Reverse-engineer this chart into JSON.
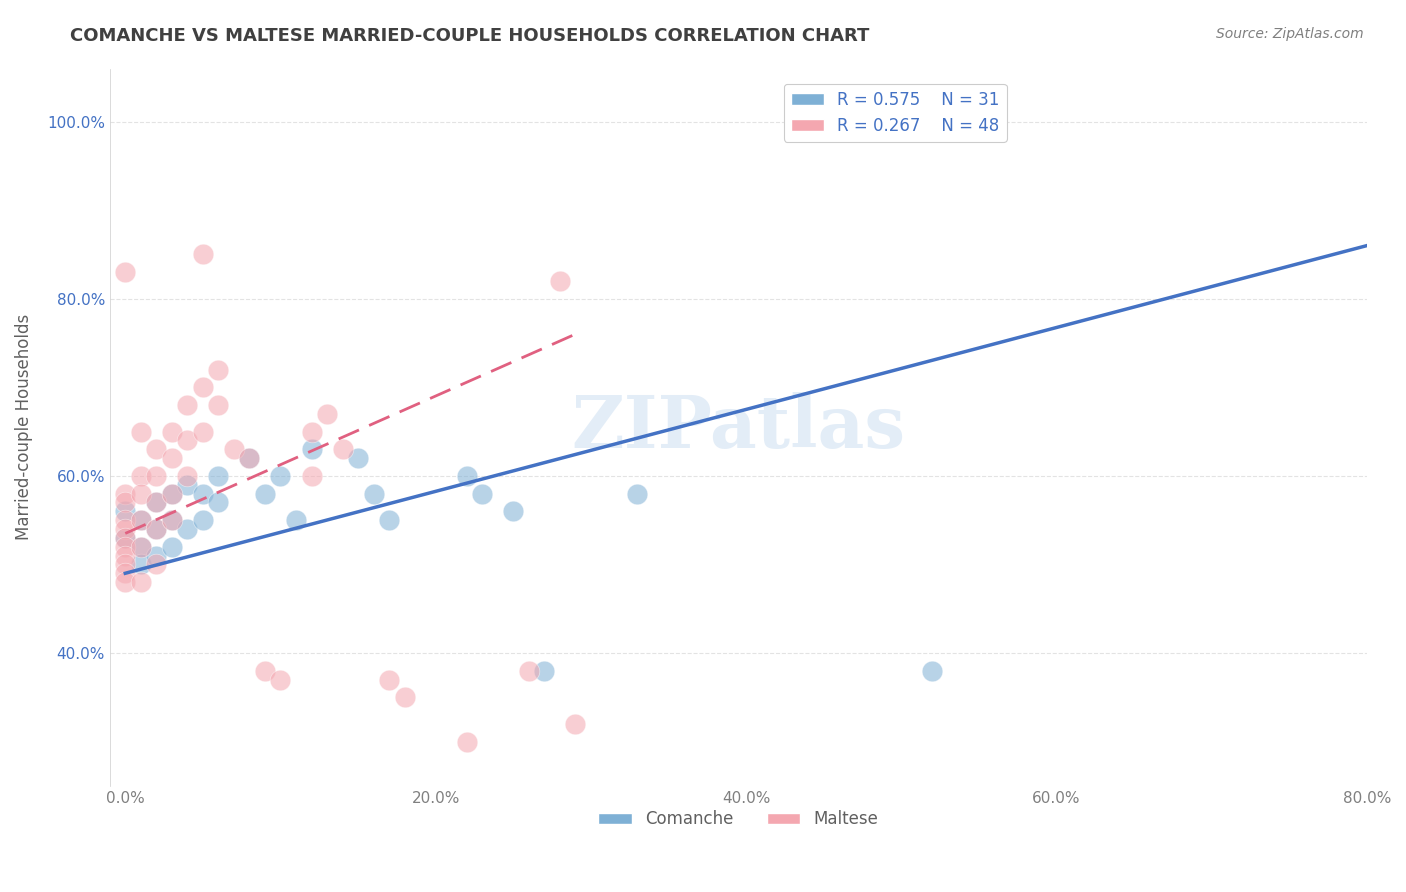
{
  "title": "COMANCHE VS MALTESE MARRIED-COUPLE HOUSEHOLDS CORRELATION CHART",
  "source": "Source: ZipAtlas.com",
  "ylabel": "Married-couple Households",
  "xlabel": "",
  "watermark": "ZIPatlas",
  "xlim": [
    0.0,
    0.8
  ],
  "ylim": [
    0.25,
    1.05
  ],
  "xticks": [
    0.0,
    0.2,
    0.4,
    0.6,
    0.8
  ],
  "xtick_labels": [
    "0.0%",
    "20.0%",
    "40.0%",
    "60.0%",
    "80.0%"
  ],
  "ytick_labels": [
    "40.0%",
    "60.0%",
    "80.0%",
    "100.0%"
  ],
  "yticks": [
    0.4,
    0.6,
    0.8,
    1.0
  ],
  "comanche_color": "#7EB0D5",
  "maltese_color": "#F4A7B0",
  "comanche_line_color": "#4472C4",
  "maltese_line_color": "#E06080",
  "R_comanche": 0.575,
  "N_comanche": 31,
  "R_maltese": 0.267,
  "N_maltese": 48,
  "legend_R_color": "#4472C4",
  "comanche_points": [
    [
      0.0,
      0.56
    ],
    [
      0.0,
      0.53
    ],
    [
      0.01,
      0.55
    ],
    [
      0.01,
      0.52
    ],
    [
      0.01,
      0.5
    ],
    [
      0.02,
      0.57
    ],
    [
      0.02,
      0.54
    ],
    [
      0.02,
      0.51
    ],
    [
      0.03,
      0.58
    ],
    [
      0.03,
      0.55
    ],
    [
      0.03,
      0.52
    ],
    [
      0.04,
      0.59
    ],
    [
      0.04,
      0.54
    ],
    [
      0.05,
      0.58
    ],
    [
      0.05,
      0.55
    ],
    [
      0.06,
      0.6
    ],
    [
      0.06,
      0.57
    ],
    [
      0.08,
      0.62
    ],
    [
      0.09,
      0.58
    ],
    [
      0.1,
      0.6
    ],
    [
      0.11,
      0.55
    ],
    [
      0.12,
      0.63
    ],
    [
      0.15,
      0.62
    ],
    [
      0.16,
      0.58
    ],
    [
      0.17,
      0.55
    ],
    [
      0.22,
      0.6
    ],
    [
      0.23,
      0.58
    ],
    [
      0.25,
      0.56
    ],
    [
      0.27,
      0.38
    ],
    [
      0.33,
      0.58
    ],
    [
      0.52,
      0.38
    ]
  ],
  "maltese_points": [
    [
      0.0,
      0.58
    ],
    [
      0.0,
      0.57
    ],
    [
      0.0,
      0.55
    ],
    [
      0.0,
      0.54
    ],
    [
      0.0,
      0.53
    ],
    [
      0.0,
      0.52
    ],
    [
      0.0,
      0.51
    ],
    [
      0.0,
      0.5
    ],
    [
      0.0,
      0.49
    ],
    [
      0.0,
      0.48
    ],
    [
      0.01,
      0.65
    ],
    [
      0.01,
      0.6
    ],
    [
      0.01,
      0.58
    ],
    [
      0.01,
      0.55
    ],
    [
      0.01,
      0.52
    ],
    [
      0.01,
      0.48
    ],
    [
      0.02,
      0.63
    ],
    [
      0.02,
      0.6
    ],
    [
      0.02,
      0.57
    ],
    [
      0.02,
      0.54
    ],
    [
      0.02,
      0.5
    ],
    [
      0.03,
      0.65
    ],
    [
      0.03,
      0.62
    ],
    [
      0.03,
      0.58
    ],
    [
      0.03,
      0.55
    ],
    [
      0.04,
      0.68
    ],
    [
      0.04,
      0.64
    ],
    [
      0.04,
      0.6
    ],
    [
      0.05,
      0.7
    ],
    [
      0.05,
      0.65
    ],
    [
      0.06,
      0.72
    ],
    [
      0.06,
      0.68
    ],
    [
      0.07,
      0.63
    ],
    [
      0.08,
      0.62
    ],
    [
      0.09,
      0.38
    ],
    [
      0.1,
      0.37
    ],
    [
      0.12,
      0.65
    ],
    [
      0.12,
      0.6
    ],
    [
      0.13,
      0.67
    ],
    [
      0.14,
      0.63
    ],
    [
      0.17,
      0.37
    ],
    [
      0.18,
      0.35
    ],
    [
      0.22,
      0.3
    ],
    [
      0.26,
      0.38
    ],
    [
      0.28,
      0.82
    ],
    [
      0.05,
      0.85
    ],
    [
      0.0,
      0.83
    ],
    [
      0.29,
      0.32
    ]
  ],
  "comanche_line": {
    "x0": 0.0,
    "y0": 0.49,
    "x1": 0.8,
    "y1": 0.86
  },
  "maltese_line": {
    "x0": 0.0,
    "y0": 0.535,
    "x1": 0.29,
    "y1": 0.76
  },
  "background_color": "#FFFFFF",
  "grid_color": "#DDDDDD",
  "title_color": "#404040",
  "axis_label_color": "#606060",
  "tick_color": "#808080"
}
